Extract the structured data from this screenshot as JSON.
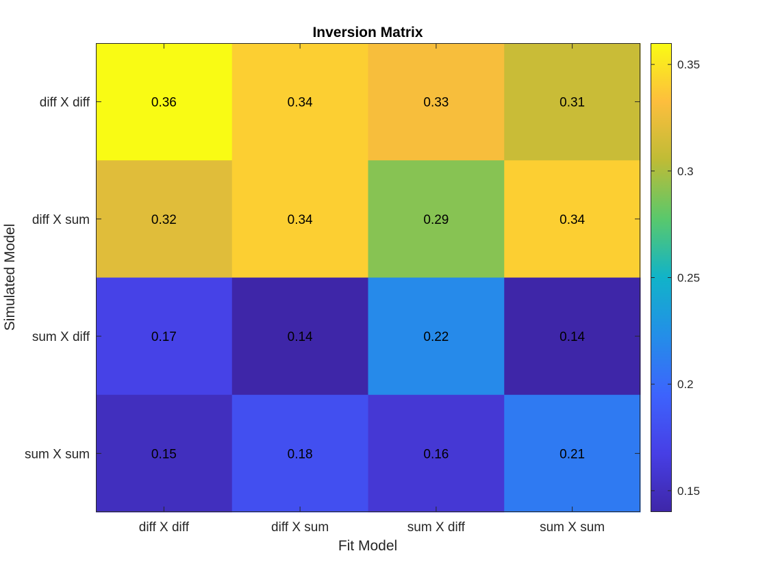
{
  "chart_data": {
    "type": "heatmap",
    "title": "Inversion Matrix",
    "xlabel": "Fit Model",
    "ylabel": "Simulated Model",
    "x_categories": [
      "diff X diff",
      "diff X sum",
      "sum X diff",
      "sum X sum"
    ],
    "y_categories": [
      "diff X diff",
      "diff X sum",
      "sum X diff",
      "sum X sum"
    ],
    "values": [
      [
        0.36,
        0.34,
        0.33,
        0.31
      ],
      [
        0.32,
        0.34,
        0.29,
        0.34
      ],
      [
        0.17,
        0.14,
        0.22,
        0.14
      ],
      [
        0.15,
        0.18,
        0.16,
        0.21
      ]
    ],
    "colorbar": {
      "range": [
        0.14,
        0.36
      ],
      "ticks": [
        0.15,
        0.2,
        0.25,
        0.3,
        0.35
      ],
      "tick_labels": [
        "0.15",
        "0.2",
        "0.25",
        "0.3",
        "0.35"
      ],
      "colormap": "parula"
    }
  }
}
